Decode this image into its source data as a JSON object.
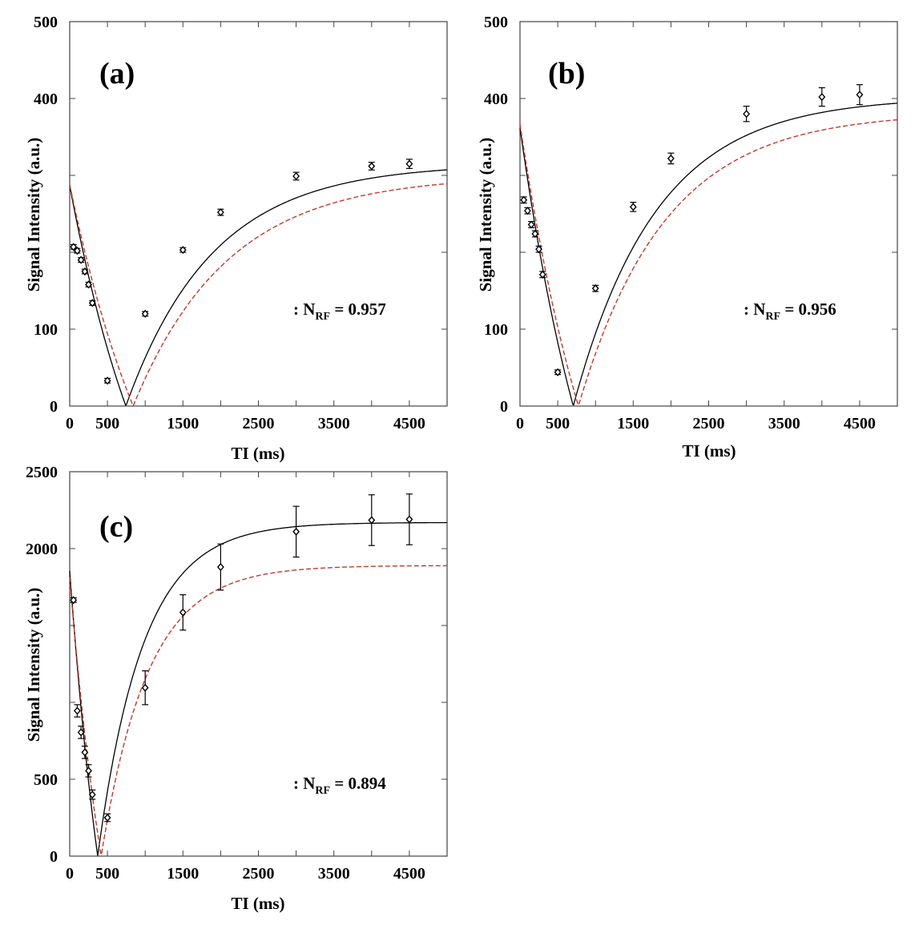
{
  "chart_data": [
    {
      "type": "line",
      "panel_label": "(a)",
      "xlabel": "TI (ms)",
      "ylabel": "Signal Intensity (a.u.)",
      "xlim": [
        0,
        5000
      ],
      "ylim": [
        0,
        500
      ],
      "x_ticks": [
        0,
        500,
        1500,
        2500,
        3500,
        4500
      ],
      "y_ticks": [
        0,
        100,
        400,
        500
      ],
      "annotation": {
        "prefix": ": N",
        "subscript": "RF",
        "suffix": " = 0.957"
      },
      "colors": {
        "solid": "#000000",
        "dashed": "#c0392b"
      },
      "measured": {
        "x": [
          50,
          100,
          150,
          200,
          250,
          300,
          500,
          1000,
          1500,
          2000,
          3000,
          4000,
          4500
        ],
        "y": [
          207,
          202,
          190,
          175,
          158,
          134,
          33,
          120,
          203,
          252,
          299,
          312,
          315
        ],
        "err": [
          3,
          3,
          3,
          3,
          3,
          3,
          3,
          3,
          3,
          4,
          5,
          5,
          6
        ]
      },
      "series": [
        {
          "style": "solid",
          "fit": {
            "M0": 315,
            "a": 0.91,
            "T1": 1150
          }
        },
        {
          "style": "dashed",
          "fit": {
            "M0": 300,
            "a": 0.96,
            "T1": 1250
          }
        }
      ]
    },
    {
      "type": "line",
      "panel_label": "(b)",
      "xlabel": "TI (ms)",
      "ylabel": "Signal Intensity (a.u.)",
      "xlim": [
        0,
        5000
      ],
      "ylim": [
        0,
        500
      ],
      "x_ticks": [
        0,
        500,
        1500,
        2500,
        3500,
        4500
      ],
      "y_ticks": [
        0,
        100,
        400,
        500
      ],
      "annotation": {
        "prefix": ": N",
        "subscript": "RF",
        "suffix": " = 0.956"
      },
      "colors": {
        "solid": "#000000",
        "dashed": "#c0392b"
      },
      "measured": {
        "x": [
          50,
          100,
          150,
          200,
          250,
          300,
          500,
          1000,
          1500,
          2000,
          3000,
          4000,
          4500
        ],
        "y": [
          268,
          254,
          236,
          224,
          204,
          171,
          44,
          153,
          259,
          322,
          380,
          402,
          405
        ],
        "err": [
          4,
          4,
          4,
          4,
          4,
          4,
          3,
          4,
          6,
          7,
          10,
          12,
          13
        ]
      },
      "series": [
        {
          "style": "solid",
          "fit": {
            "M0": 402,
            "a": 0.9,
            "T1": 1100
          }
        },
        {
          "style": "dashed",
          "fit": {
            "M0": 382,
            "a": 0.96,
            "T1": 1150
          }
        }
      ]
    },
    {
      "type": "line",
      "panel_label": "(c)",
      "xlabel": "TI (ms)",
      "ylabel": "Signal Intensity (a.u.)",
      "xlim": [
        0,
        5000
      ],
      "ylim": [
        0,
        2500
      ],
      "x_ticks": [
        0,
        500,
        1500,
        2500,
        3500,
        4500
      ],
      "y_ticks": [
        0,
        500,
        2000,
        2500
      ],
      "annotation": {
        "prefix": ": N",
        "subscript": "RF",
        "suffix": " = 0.894"
      },
      "colors": {
        "solid": "#000000",
        "dashed": "#c0392b"
      },
      "measured": {
        "x": [
          50,
          100,
          150,
          200,
          250,
          300,
          500,
          1000,
          1500,
          2000,
          3000,
          4000,
          4500
        ],
        "y": [
          1665,
          945,
          805,
          675,
          555,
          400,
          250,
          1095,
          1585,
          1880,
          2110,
          2185,
          2190
        ],
        "err": [
          15,
          40,
          40,
          40,
          40,
          30,
          25,
          110,
          115,
          150,
          165,
          165,
          165
        ]
      },
      "series": [
        {
          "style": "solid",
          "fit": {
            "M0": 2170,
            "a": 0.855,
            "T1": 600
          }
        },
        {
          "style": "dashed",
          "fit": {
            "M0": 1890,
            "a": 0.96,
            "T1": 620
          }
        }
      ]
    }
  ]
}
